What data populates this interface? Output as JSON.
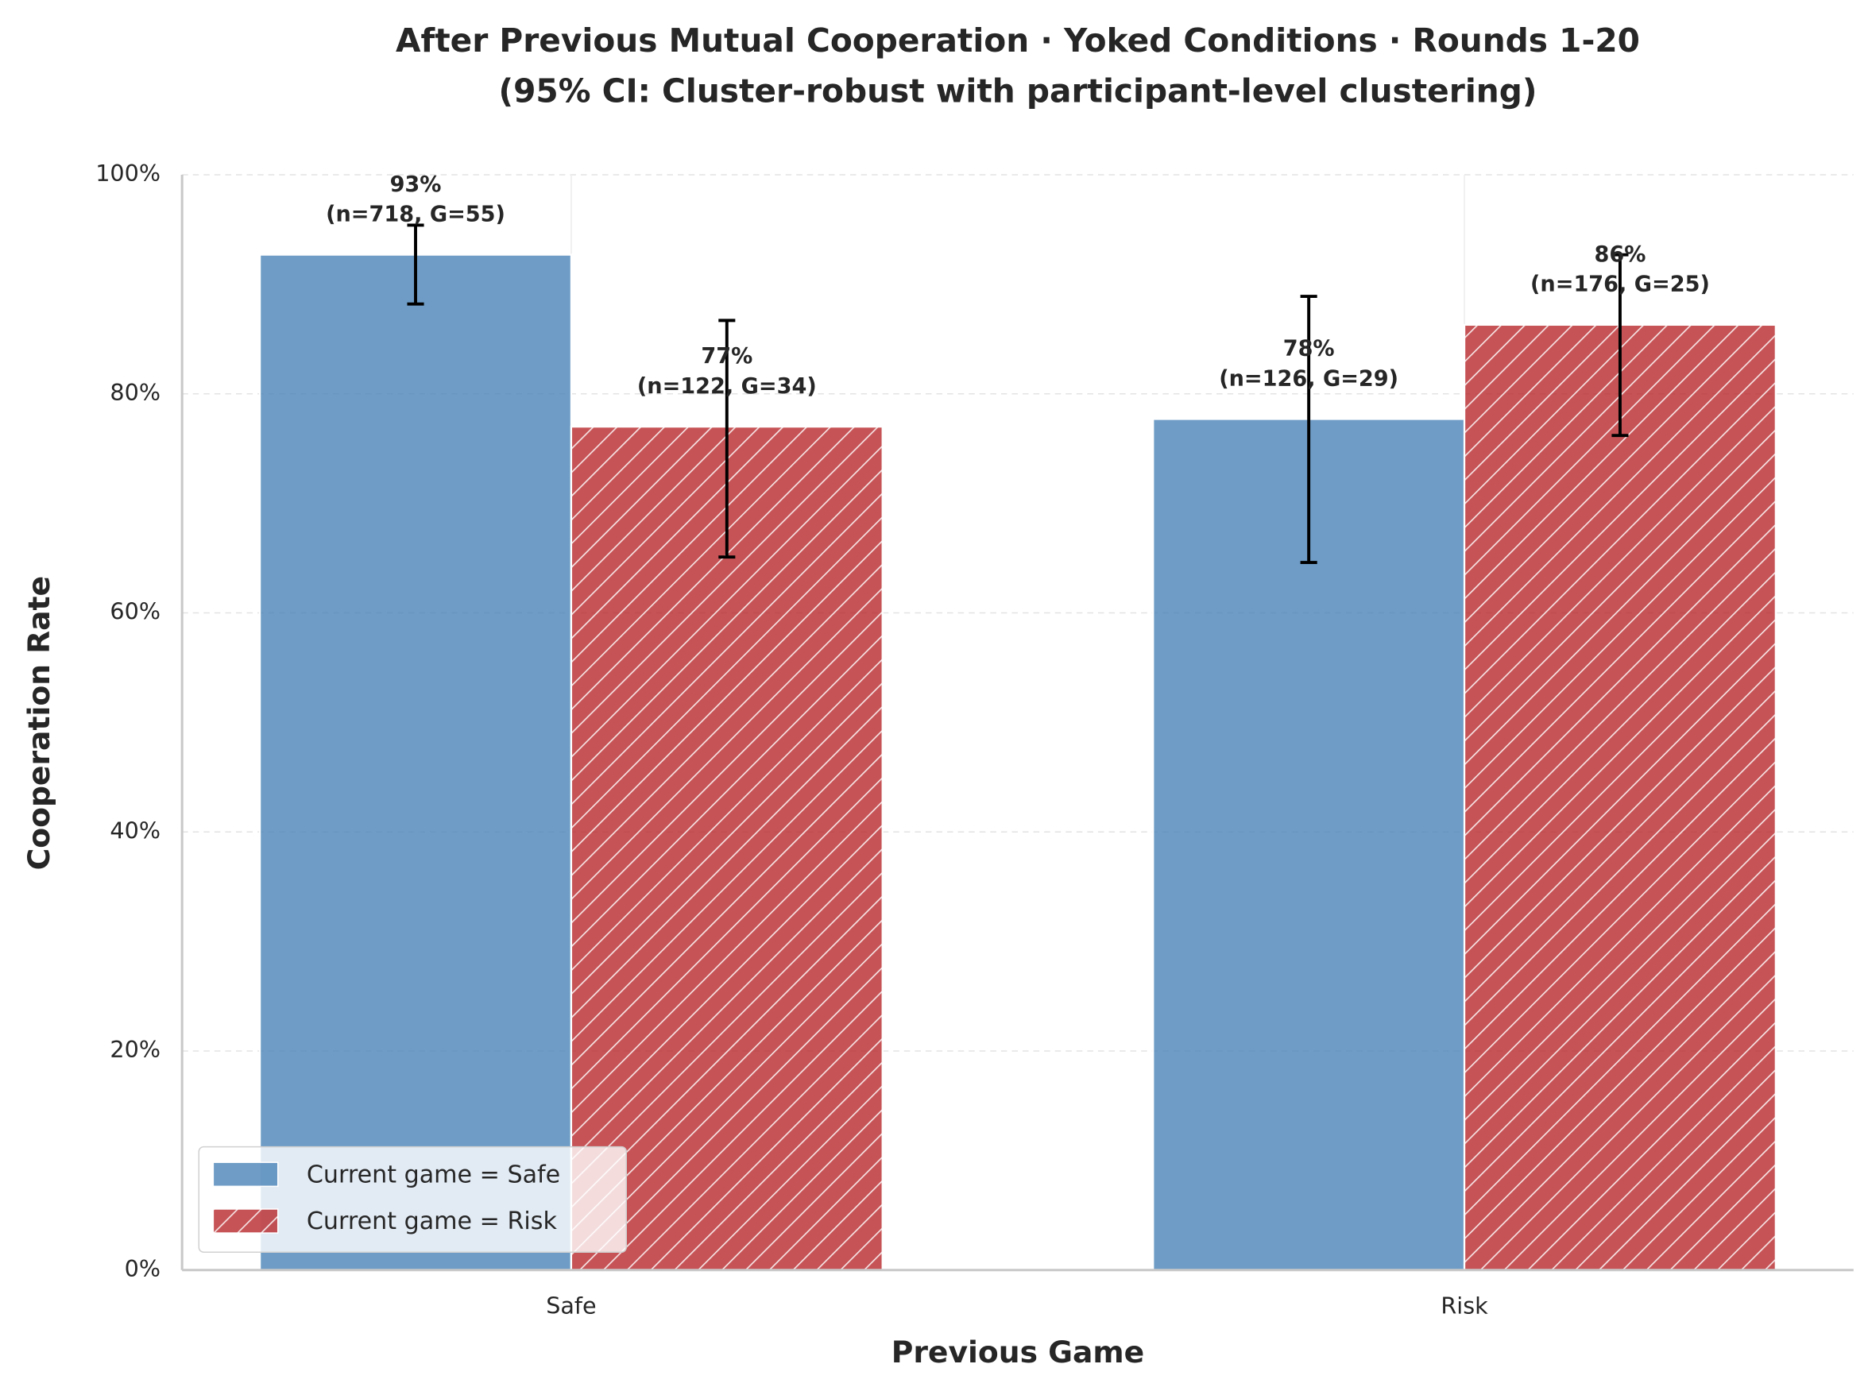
{
  "chart_data": {
    "type": "bar",
    "title": "After Previous Mutual Cooperation · Yoked Conditions · Rounds 1-20",
    "subtitle": "(95% CI: Cluster-robust with participant-level clustering)",
    "x_label": "Previous Game",
    "y_label": "Cooperation Rate",
    "categories": [
      "Safe",
      "Risk"
    ],
    "series": [
      {
        "name": "Current game = Safe",
        "color": "#4a83b8",
        "hatch": false,
        "values": [
          92.7,
          77.7
        ],
        "ci_low": [
          88.2,
          64.6
        ],
        "ci_high": [
          95.4,
          88.9
        ],
        "value_labels": [
          "93%",
          "78%"
        ],
        "annotations": [
          "(n=718, G=55)",
          "(n=126, G=29)"
        ]
      },
      {
        "name": "Current game = Risk",
        "color": "#b8282c",
        "hatch": true,
        "values": [
          77.0,
          86.3
        ],
        "ci_low": [
          65.1,
          76.2
        ],
        "ci_high": [
          86.7,
          92.7
        ],
        "value_labels": [
          "77%",
          "86%"
        ],
        "annotations": [
          "(n=122, G=34)",
          "(n=176, G=25)"
        ]
      }
    ],
    "ylim": [
      0,
      100
    ],
    "yticks": [
      {
        "value": 0,
        "label": "0%"
      },
      {
        "value": 20,
        "label": "20%"
      },
      {
        "value": 40,
        "label": "40%"
      },
      {
        "value": 60,
        "label": "60%"
      },
      {
        "value": 80,
        "label": "80%"
      },
      {
        "value": 100,
        "label": "100%"
      }
    ],
    "grid": true,
    "legend": "lower left"
  }
}
